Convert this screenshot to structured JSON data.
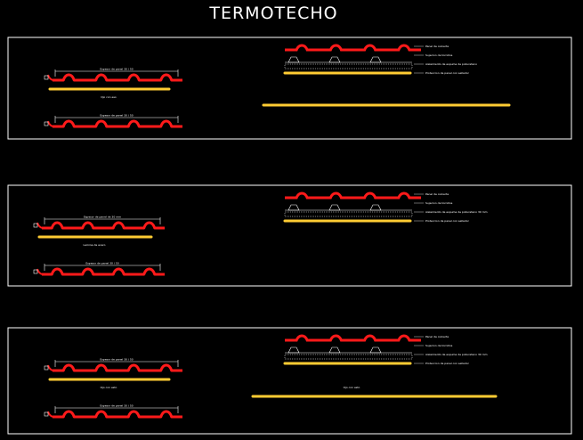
{
  "title": "TERMOTECHO",
  "colors": {
    "background": "#000000",
    "frame": "#ffffff",
    "roof_sheet": "#ff1a1a",
    "insulation": "#ffcc33",
    "annotation": "#ffffff"
  },
  "panels": [
    {
      "name": "panel-1",
      "sheets": [
        {
          "dim_label": "Espesor de panel 30 / 50",
          "has_insulation": true,
          "note": "Ojo con eso"
        },
        {
          "dim_label": "Espesor de panel 30 / 50",
          "has_insulation": false,
          "note": ""
        }
      ],
      "section_labels": [
        "Panel de cubierta",
        "Sujecion de tornillos",
        "Aislamiento de espuma de poliuretano",
        "Proteccion de panel con sellador"
      ],
      "bottom_note": ""
    },
    {
      "name": "panel-2",
      "sheets": [
        {
          "dim_label": "Espesor de panel de 30 mm",
          "has_insulation": true,
          "note": "Lamina de acero"
        },
        {
          "dim_label": "Espesor de panel 30 / 50",
          "has_insulation": false,
          "note": ""
        }
      ],
      "section_labels": [
        "Panel de cubierta",
        "Sujecion de tornillos",
        "Aislamiento de espuma de poliuretano 30 mm",
        "Proteccion de panel con sellador"
      ],
      "bottom_note": ""
    },
    {
      "name": "panel-3",
      "sheets": [
        {
          "dim_label": "Espesor de panel 30 / 50",
          "has_insulation": true,
          "note": "Ojo con esto"
        },
        {
          "dim_label": "Espesor de panel 30 / 50",
          "has_insulation": false,
          "note": ""
        }
      ],
      "section_labels": [
        "Panel de cubierta",
        "Sujecion de tornillos",
        "Aislamiento de espuma de poliuretano 30 mm",
        "Proteccion de panel con sellador"
      ],
      "bottom_note": "Ojo con esto"
    }
  ]
}
